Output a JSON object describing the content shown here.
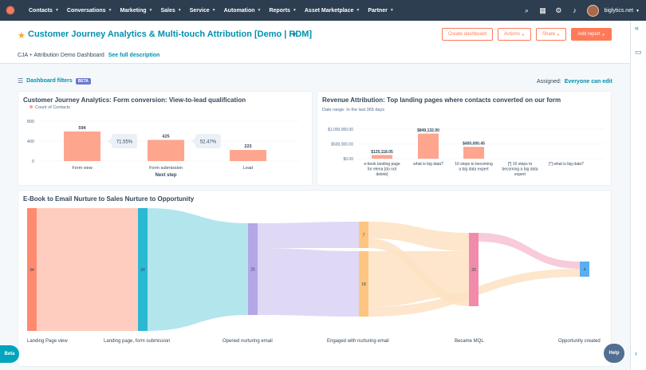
{
  "nav": {
    "items": [
      "Contacts",
      "Conversations",
      "Marketing",
      "Sales",
      "Service",
      "Automation",
      "Reports",
      "Asset Marketplace",
      "Partner"
    ],
    "account": "biglytics.net"
  },
  "header": {
    "title": "Customer Journey Analytics & Multi-touch Attribution [Demo | RDM]",
    "buttons": {
      "create": "Create dashboard",
      "actions": "Actions",
      "share": "Share",
      "add_report": "Add report"
    },
    "subtitle": "CJA + Attribution Demo Dashboard",
    "description_link": "See full description"
  },
  "filters": {
    "label": "Dashboard filters",
    "badge": "BETA",
    "assigned_label": "Assigned:",
    "assigned_value": "Everyone can edit"
  },
  "chart_data": [
    {
      "type": "bar",
      "title": "Customer Journey Analytics: Form conversion: View-to-lead qualification",
      "legend": "Count of Contacts",
      "categories": [
        "Form view",
        "Form submission",
        "Lead"
      ],
      "values": [
        594,
        425,
        223
      ],
      "conversion_rates": [
        "71.55%",
        "52.47%"
      ],
      "xlabel": "Next step",
      "ylabel": "",
      "ylim": [
        0,
        800
      ],
      "yticks": [
        "800",
        "400",
        "0"
      ]
    },
    {
      "type": "bar",
      "title": "Revenue Attribution: Top landing pages where contacts converted on our form",
      "subtitle": "Date range: In the last 365 days",
      "categories": [
        "e-book landing page for elena [do not delete]",
        "what is big data?",
        "10 steps to becoming a big data expert",
        "[*] 10 steps to becoming a big data expert",
        "[*] what is big data?"
      ],
      "category_lines": [
        [
          "e-book landing page",
          "for elena [do not",
          "delete]"
        ],
        [
          "what is big data?"
        ],
        [
          "10 steps to becoming",
          "a big data expert"
        ],
        [
          "[*] 10 steps to",
          "becoming a big data",
          "expert"
        ],
        [
          "[*] what is big data?"
        ]
      ],
      "values": [
        125118.05,
        849132.0,
        400000.45,
        0,
        0
      ],
      "value_labels": [
        "$125,118.05",
        "$849,132.00",
        "$400,000.45",
        "",
        ""
      ],
      "ylim": [
        0,
        1000000
      ],
      "yticks": [
        "$1,000,000.00",
        "$500,000.00",
        "$0.00"
      ]
    },
    {
      "type": "sankey",
      "title": "E-Book to Email Nurture to Sales Nurture to Opportunity",
      "stages": [
        "Landing Page view",
        "Landing page, form submission",
        "Opened nurturing email",
        "Engaged with nurturing email",
        "Became MQL",
        "Opportunity created"
      ],
      "node_values": [
        [
          "34"
        ],
        [
          "34"
        ],
        [
          "25"
        ],
        [
          "7",
          "18"
        ],
        [
          "20"
        ],
        [
          "4"
        ]
      ]
    }
  ],
  "bubbles": {
    "beta": "Beta",
    "help": "Help"
  },
  "colors": {
    "nav_bg": "#2d3e50",
    "accent": "#ff7a59",
    "link": "#0091ae",
    "bar": "#fea58e"
  }
}
